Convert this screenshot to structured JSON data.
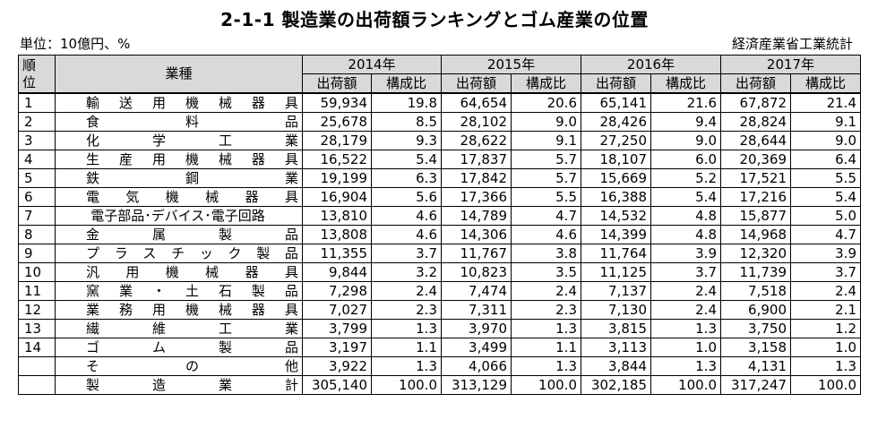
{
  "title": "2-1-1 製造業の出荷額ランキングとゴム産業の位置",
  "unit": "単位：10億円、%",
  "source": "経済産業省工業統計",
  "headers": {
    "rank": [
      "順",
      "位"
    ],
    "industry": "業種",
    "years": [
      "2014年",
      "2015年",
      "2016年",
      "2017年"
    ],
    "sub": [
      "出荷額",
      "構成比"
    ]
  },
  "rows": [
    {
      "rank": "1",
      "name": "輸送用機械器具",
      "values": [
        "59,934",
        "19.8",
        "64,654",
        "20.6",
        "65,141",
        "21.6",
        "67,872",
        "21.4"
      ]
    },
    {
      "rank": "2",
      "name": "食料品",
      "values": [
        "25,678",
        "8.5",
        "28,102",
        "9.0",
        "28,426",
        "9.4",
        "28,824",
        "9.1"
      ]
    },
    {
      "rank": "3",
      "name": "化学工業",
      "values": [
        "28,179",
        "9.3",
        "28,622",
        "9.1",
        "27,250",
        "9.0",
        "28,644",
        "9.0"
      ]
    },
    {
      "rank": "4",
      "name": "生産用機械器具",
      "values": [
        "16,522",
        "5.4",
        "17,837",
        "5.7",
        "18,107",
        "6.0",
        "20,369",
        "6.4"
      ]
    },
    {
      "rank": "5",
      "name": "鉄鋼業",
      "values": [
        "19,199",
        "6.3",
        "17,842",
        "5.7",
        "15,669",
        "5.2",
        "17,521",
        "5.5"
      ]
    },
    {
      "rank": "6",
      "name": "電気機械器具",
      "values": [
        "16,904",
        "5.6",
        "17,366",
        "5.5",
        "16,388",
        "5.4",
        "17,216",
        "5.4"
      ]
    },
    {
      "rank": "7",
      "name": "電子部品･デバイス･電子回路",
      "values": [
        "13,810",
        "4.6",
        "14,789",
        "4.7",
        "14,532",
        "4.8",
        "15,877",
        "5.0"
      ]
    },
    {
      "rank": "8",
      "name": "金属製品",
      "values": [
        "13,808",
        "4.6",
        "14,306",
        "4.6",
        "14,399",
        "4.8",
        "14,968",
        "4.7"
      ]
    },
    {
      "rank": "9",
      "name": "プラスチック製品",
      "values": [
        "11,355",
        "3.7",
        "11,767",
        "3.8",
        "11,764",
        "3.9",
        "12,320",
        "3.9"
      ]
    },
    {
      "rank": "10",
      "name": "汎用機械器具",
      "values": [
        "9,844",
        "3.2",
        "10,823",
        "3.5",
        "11,125",
        "3.7",
        "11,739",
        "3.7"
      ]
    },
    {
      "rank": "11",
      "name": "窯業・土石製品",
      "values": [
        "7,298",
        "2.4",
        "7,474",
        "2.4",
        "7,137",
        "2.4",
        "7,518",
        "2.4"
      ]
    },
    {
      "rank": "12",
      "name": "業務用機械器具",
      "values": [
        "7,027",
        "2.3",
        "7,311",
        "2.3",
        "7,130",
        "2.4",
        "6,900",
        "2.1"
      ]
    },
    {
      "rank": "13",
      "name": "繊維工業",
      "values": [
        "3,799",
        "1.3",
        "3,970",
        "1.3",
        "3,815",
        "1.3",
        "3,750",
        "1.2"
      ]
    },
    {
      "rank": "14",
      "name": "ゴム製品",
      "values": [
        "3,197",
        "1.1",
        "3,499",
        "1.1",
        "3,113",
        "1.0",
        "3,158",
        "1.0"
      ]
    },
    {
      "rank": "",
      "name": "その他",
      "values": [
        "3,922",
        "1.3",
        "4,066",
        "1.3",
        "3,844",
        "1.3",
        "4,131",
        "1.3"
      ]
    },
    {
      "rank": "",
      "name": "製造業計",
      "values": [
        "305,140",
        "100.0",
        "313,129",
        "100.0",
        "302,185",
        "100.0",
        "317,247",
        "100.0"
      ]
    }
  ]
}
